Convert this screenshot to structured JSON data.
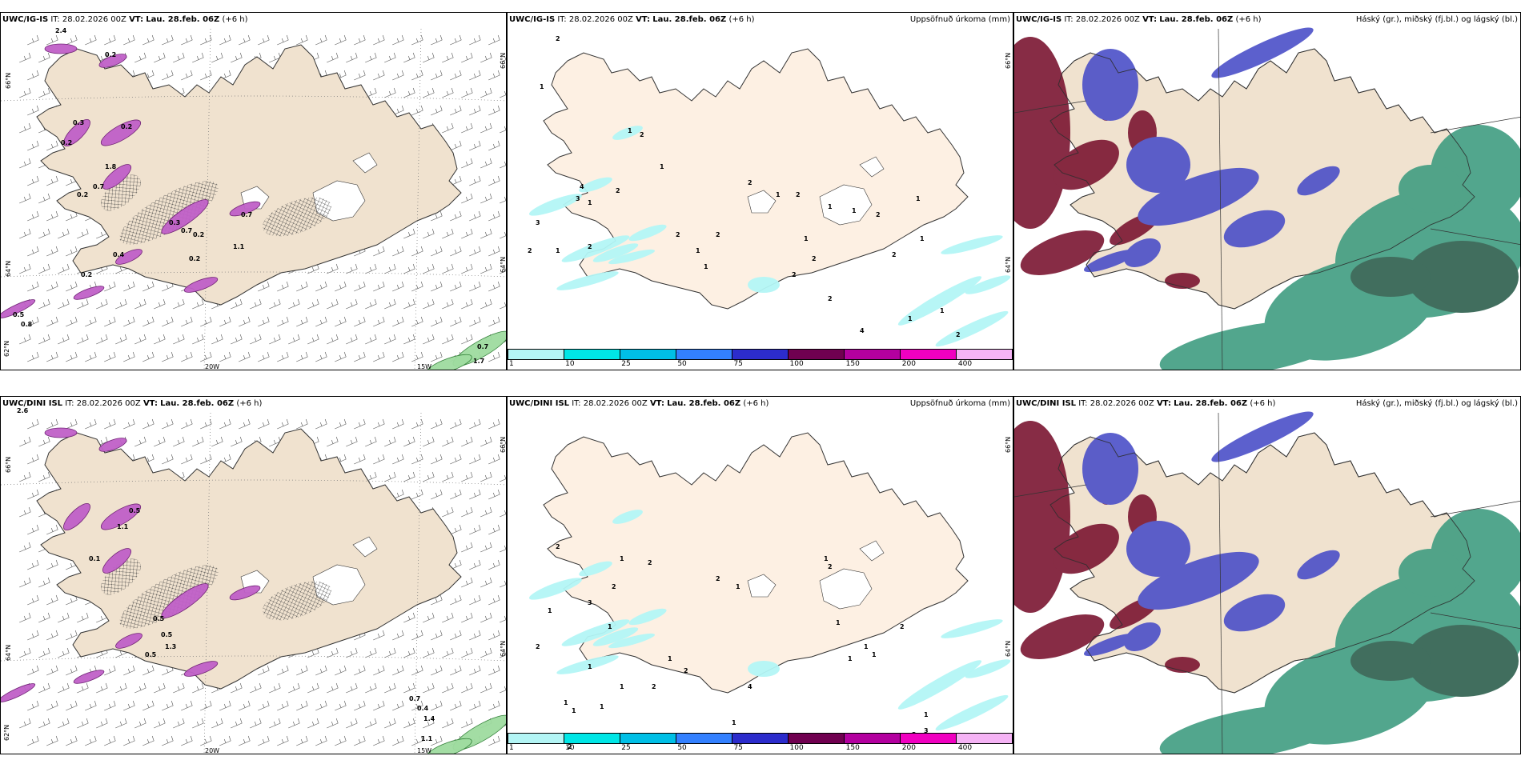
{
  "panels": {
    "top_left": {
      "model": "UWC/IG-IS",
      "it_label": "IT:",
      "it": "28.02.2026 00Z",
      "vt_label": "VT:",
      "vt": "Lau. 28.feb. 06Z",
      "lead": "(+6 h)"
    },
    "top_mid": {
      "model": "UWC/IG-IS",
      "it_label": "IT:",
      "it": "28.02.2026 00Z",
      "vt_label": "VT:",
      "vt": "Lau. 28.feb. 06Z",
      "lead": "(+6 h)",
      "right_title": "Uppsöfnuð úrkoma (mm)"
    },
    "top_right": {
      "model": "UWC/IG-IS",
      "it_label": "IT:",
      "it": "28.02.2026 00Z",
      "vt_label": "VT:",
      "vt": "Lau. 28.feb. 06Z",
      "lead": "(+6 h)",
      "right_title": "Háský (gr.), miðský (fj.bl.) og lágský (bl.)"
    },
    "bottom_left": {
      "model": "UWC/DINI ISL",
      "it_label": "IT:",
      "it": "28.02.2026 00Z",
      "vt_label": "VT:",
      "vt": "Lau. 28.feb. 06Z",
      "lead": "(+6 h)"
    },
    "bottom_mid": {
      "model": "UWC/DINI ISL",
      "it_label": "IT:",
      "it": "28.02.2026 00Z",
      "vt_label": "VT:",
      "vt": "Lau. 28.feb. 06Z",
      "lead": "(+6 h)",
      "right_title": "Uppsöfnuð úrkoma (mm)"
    },
    "bottom_right": {
      "model": "UWC/DINI ISL",
      "it_label": "IT:",
      "it": "28.02.2026 00Z",
      "vt_label": "VT:",
      "vt": "Lau. 28.feb. 06Z",
      "lead": "(+6 h)",
      "right_title": "Háský (gr.), miðský (fj.bl.) og lágský (bl.)"
    }
  },
  "grid_labels": {
    "lat66": "66°N",
    "lat64": "64°N",
    "lat62": "62°N",
    "lon20": "20W",
    "lon15": "15W"
  },
  "precip_colorbar": {
    "labels": [
      "1",
      "10",
      "25",
      "50",
      "75",
      "100",
      "150",
      "200",
      "400"
    ],
    "colors": [
      "#b3f5f5",
      "#00e6e6",
      "#00bfe6",
      "#3380ff",
      "#2c2ccc",
      "#700050",
      "#b3009f",
      "#f000c0",
      "#f5b3f5"
    ]
  },
  "colors": {
    "land": "#f0e2cf",
    "land_light": "#fdf0e3",
    "coast": "#333333",
    "snow": "#ffffff"
  },
  "top_left_values": [
    "2.4",
    "0.2",
    "0.3",
    "0.2",
    "0.2",
    "1.8",
    "0.7",
    "0.2",
    "0.3",
    "0.7",
    "0.2",
    "0.7",
    "1.1",
    "0.2",
    "0.4",
    "0.5",
    "0.8",
    "0.2",
    "0.7",
    "1.7"
  ],
  "bottom_left_values": [
    "2.6",
    "0.5",
    "1.1",
    "0.1",
    "0.5",
    "0.5",
    "1.3",
    "0.5",
    "0.7",
    "0.4",
    "1.4",
    "1.1"
  ],
  "top_mid_values": [
    "2",
    "1",
    "1",
    "2",
    "1",
    "3",
    "3",
    "1",
    "4",
    "2",
    "2",
    "1",
    "2",
    "2",
    "1",
    "2",
    "1",
    "2",
    "1",
    "2",
    "1",
    "1",
    "1",
    "2",
    "1",
    "2",
    "1",
    "2",
    "2",
    "2",
    "4",
    "1",
    "1",
    "2"
  ],
  "bottom_mid_values": [
    "2",
    "1",
    "3",
    "1",
    "2",
    "2",
    "1",
    "2",
    "1",
    "1",
    "1",
    "1",
    "1",
    "2",
    "2",
    "1",
    "2",
    "1",
    "1",
    "1",
    "2",
    "1",
    "1",
    "1",
    "1",
    "2",
    "4",
    "3",
    "2",
    "1",
    "2",
    "2"
  ]
}
